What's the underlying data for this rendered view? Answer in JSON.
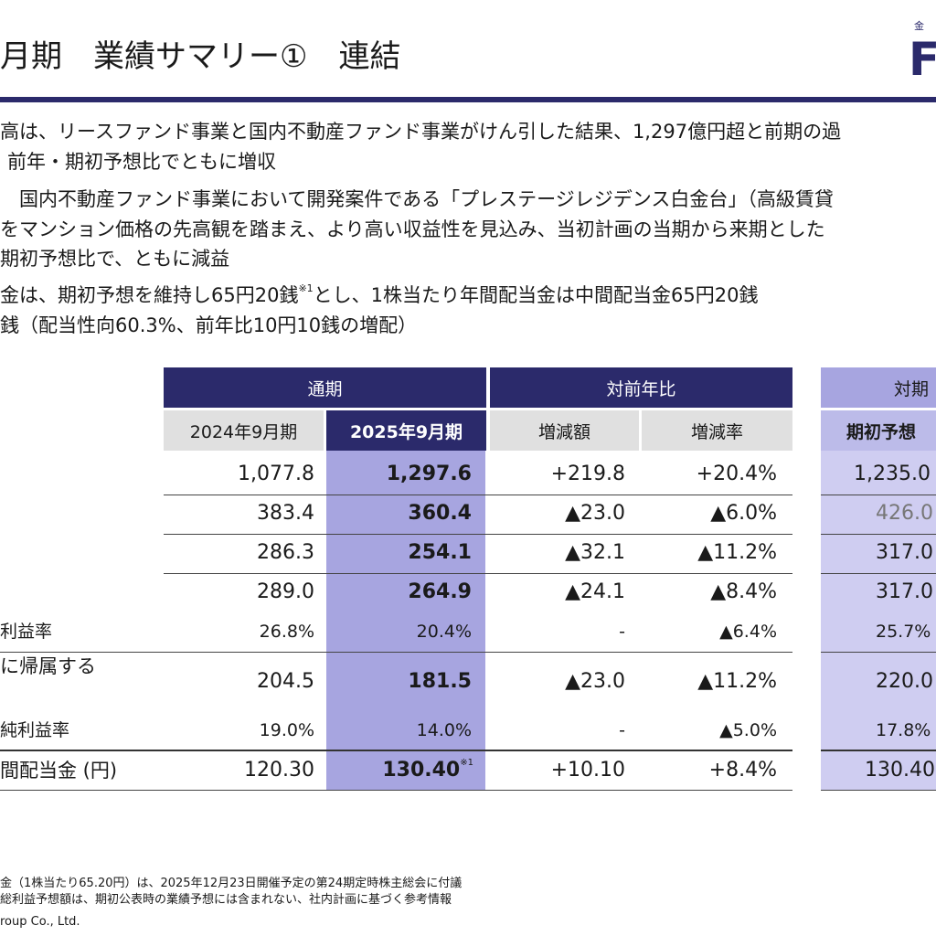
{
  "header": {
    "title": "月期　業績サマリー①　連結",
    "logo_small": "金",
    "logo_big": "F"
  },
  "bullets": [
    "高は、リースファンド事業と国内不動産ファンド事業がけん引した結果、1,297億円超と前期の過",
    "前年・期初予想比でともに増収",
    "　国内不動産ファンド事業において開発案件である「プレステージレジデンス白金台」（高級賃貸",
    "をマンション価格の先高観を踏まえ、より高い収益性を見込み、当初計画の当期から来期とした",
    "期初予想比で、ともに減益",
    "金は、期初予想を維持し65円20銭",
    "とし、1株当たり年間配当金は中間配当金65円20銭",
    "銭（配当性向60.3%、前年比10円10銭の増配）"
  ],
  "bullet_note_mark": "※1",
  "table": {
    "group_headers": {
      "full_year": "通期",
      "yoy": "対前年比",
      "vs_forecast": "対期"
    },
    "col_headers": {
      "fy2024": "2024年9月期",
      "fy2025": "2025年9月期",
      "change_amount": "増減額",
      "change_rate": "増減率",
      "initial_forecast": "期初予想"
    },
    "rows": [
      {
        "label": "",
        "fy2024": "1,077.8",
        "fy2025": "1,297.6",
        "amt": "+219.8",
        "rate": "+20.4%",
        "fc": "1,235.0",
        "note": ""
      },
      {
        "label": "",
        "fy2024": "383.4",
        "fy2025": "360.4",
        "amt": "▲23.0",
        "rate": "▲6.0%",
        "fc": "426.0",
        "note": ""
      },
      {
        "label": "",
        "fy2024": "286.3",
        "fy2025": "254.1",
        "amt": "▲32.1",
        "rate": "▲11.2%",
        "fc": "317.0",
        "note": ""
      },
      {
        "label": "",
        "fy2024": "289.0",
        "fy2025": "264.9",
        "amt": "▲24.1",
        "rate": "▲8.4%",
        "fc": "317.0",
        "note": ""
      },
      {
        "label": "利益率",
        "fy2024": "26.8%",
        "fy2025": "20.4%",
        "amt": "-",
        "rate": "▲6.4%",
        "fc": "25.7%",
        "note": ""
      },
      {
        "label": "に帰属する",
        "fy2024": "204.5",
        "fy2025": "181.5",
        "amt": "▲23.0",
        "rate": "▲11.2%",
        "fc": "220.0",
        "note": ""
      },
      {
        "label": "純利益率",
        "fy2024": "19.0%",
        "fy2025": "14.0%",
        "amt": "-",
        "rate": "▲5.0%",
        "fc": "17.8%",
        "note": ""
      },
      {
        "label": "間配当金 (円)",
        "fy2024": "120.30",
        "fy2025": "130.40",
        "amt": "+10.10",
        "rate": "+8.4%",
        "fc": "130.40",
        "note": "※1"
      }
    ]
  },
  "footnotes": [
    "金（1株当たり65.20円）は、2025年12月23日開催予定の第24期定時株主総会に付議",
    "総利益予想額は、期初公表時の業績予想には含まれない、社内計画に基づく参考情報",
    "roup Co., Ltd."
  ],
  "colors": {
    "navy": "#2b2a6b",
    "highlight": "#a7a5e0",
    "lavender": "#cfcdf1",
    "header_grey": "#e0e0e0"
  }
}
